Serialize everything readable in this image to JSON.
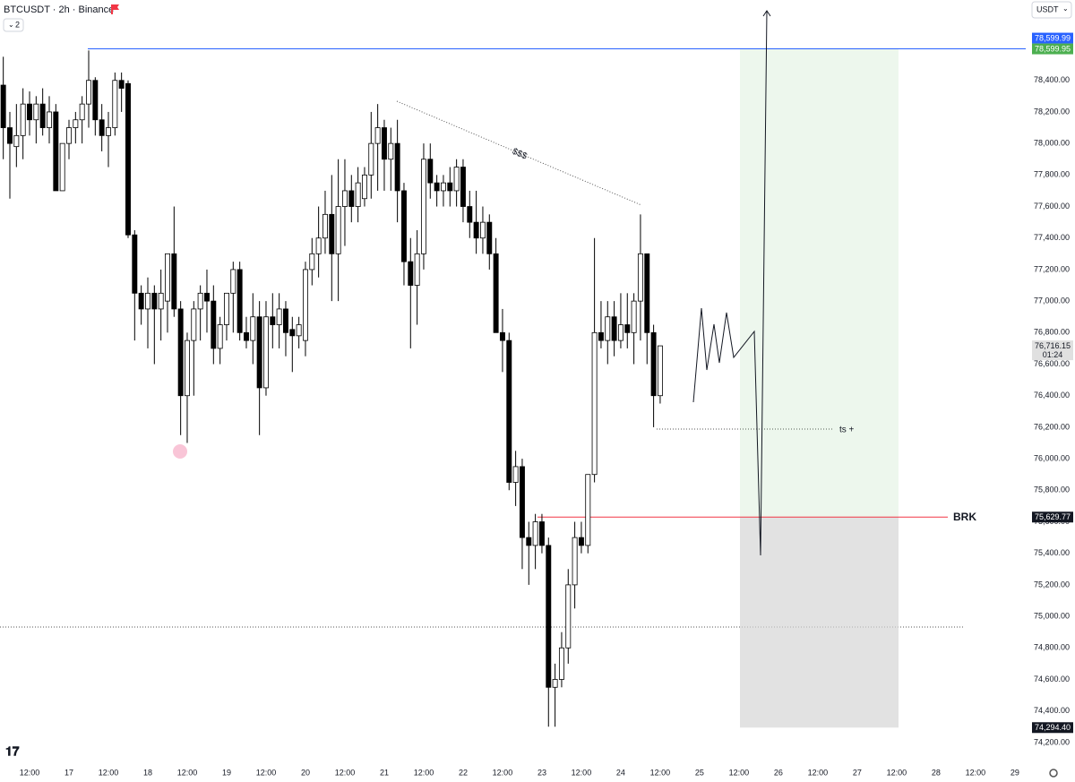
{
  "chart_data": {
    "type": "candlestick",
    "title": "BTCUSDT · 2h · Binance",
    "interval_badge": "2",
    "currency": "USDT",
    "x": [
      -20,
      -18,
      -16,
      -14,
      -12,
      -10,
      -8,
      -6,
      -4,
      -2,
      0,
      2,
      4,
      6,
      8,
      10,
      12,
      14,
      16,
      18,
      20,
      22,
      24,
      26,
      28,
      30,
      32,
      34,
      36,
      38,
      40,
      42,
      44,
      46,
      48,
      50,
      52,
      54,
      56,
      58,
      60,
      62,
      64,
      66,
      68,
      70,
      72,
      74,
      76,
      78,
      80,
      82,
      84,
      86,
      88,
      90,
      92,
      94,
      96,
      98,
      100,
      102,
      104,
      106,
      108,
      110,
      112,
      114,
      116,
      118,
      120,
      122,
      124,
      126,
      128,
      130,
      132,
      134,
      136,
      138,
      140,
      142,
      144,
      146,
      148,
      150,
      152,
      154,
      156,
      158,
      160,
      162,
      164,
      166,
      168,
      170,
      172,
      174,
      176,
      178,
      180
    ],
    "open": [
      78370,
      78100,
      77980,
      78050,
      78250,
      78150,
      78250,
      78100,
      78200,
      77700,
      78000,
      78100,
      78150,
      78250,
      78400,
      78150,
      78050,
      78100,
      78400,
      78380,
      77420,
      77050,
      76950,
      77050,
      76950,
      77000,
      77300,
      76950,
      76400,
      76750,
      76950,
      77050,
      77000,
      76700,
      76850,
      77050,
      77200,
      76800,
      76750,
      76900,
      76450,
      76900,
      76850,
      76950,
      76820,
      76780,
      76750,
      77200,
      77300,
      77400,
      77550,
      77300,
      77600,
      77700,
      77600,
      77650,
      77800,
      78000,
      78100,
      77900,
      78000,
      77700,
      77250,
      77100,
      77300,
      77900,
      77750,
      77700,
      77750,
      77700,
      77850,
      77600,
      77500,
      77400,
      77500,
      77300,
      76800,
      76750,
      75850,
      75950,
      75500,
      75450,
      75600,
      75450,
      74550,
      74600,
      74800,
      75200,
      75500,
      75450,
      75900,
      76800,
      76750,
      76900,
      76750,
      76850,
      76800,
      77000,
      77300,
      76800,
      76400
    ],
    "high": [
      78550,
      78200,
      78250,
      78350,
      78330,
      78300,
      78350,
      78300,
      78250,
      78000,
      78150,
      78200,
      78300,
      78590,
      78420,
      78250,
      78200,
      78450,
      78450,
      78400,
      77450,
      77100,
      77150,
      77100,
      77200,
      77300,
      77600,
      77000,
      76800,
      77000,
      77100,
      77200,
      77100,
      76900,
      77050,
      77250,
      77250,
      76900,
      77050,
      77000,
      77000,
      77050,
      77050,
      77000,
      76900,
      76900,
      77250,
      77400,
      77600,
      77700,
      77800,
      77900,
      77900,
      77800,
      77850,
      77850,
      78200,
      78250,
      78150,
      78100,
      78150,
      77750,
      77400,
      77450,
      78000,
      78000,
      77800,
      77800,
      77850,
      77900,
      77900,
      77700,
      77700,
      77600,
      77550,
      77400,
      76950,
      76800,
      76050,
      76000,
      75600,
      75650,
      75650,
      75500,
      74700,
      74900,
      75300,
      75600,
      75600,
      75900,
      77400,
      77000,
      77000,
      77000,
      77050,
      77050,
      77050,
      77550,
      77300,
      76850,
      76700
    ],
    "low": [
      77900,
      77650,
      77850,
      77900,
      78050,
      78000,
      78050,
      78000,
      77700,
      77700,
      77900,
      78000,
      78000,
      78100,
      78050,
      77950,
      77850,
      78050,
      78200,
      77400,
      76750,
      76850,
      76700,
      76600,
      76750,
      76800,
      76900,
      76150,
      76100,
      76400,
      76750,
      76800,
      76600,
      76600,
      76750,
      76800,
      76750,
      76700,
      76600,
      76150,
      76400,
      76700,
      76700,
      76650,
      76550,
      76700,
      76650,
      77100,
      77150,
      77300,
      77000,
      77000,
      77350,
      77500,
      77500,
      77600,
      77650,
      77700,
      77700,
      77700,
      77500,
      77100,
      76700,
      76850,
      77200,
      77650,
      77600,
      77600,
      77600,
      77600,
      77500,
      77400,
      77300,
      77300,
      77200,
      76800,
      76550,
      75800,
      75700,
      75300,
      75200,
      75300,
      75400,
      74300,
      74300,
      74550,
      74700,
      75050,
      75400,
      75400,
      75850,
      76700,
      76600,
      76650,
      76700,
      76700,
      76600,
      76750,
      76600,
      76200,
      76350
    ],
    "close": [
      78100,
      78000,
      78050,
      78250,
      78150,
      78250,
      78100,
      78200,
      77700,
      78000,
      78100,
      78150,
      78250,
      78400,
      78150,
      78050,
      78100,
      78400,
      78350,
      77420,
      77050,
      76950,
      77050,
      76950,
      77050,
      77300,
      76950,
      76400,
      76750,
      76950,
      77050,
      77000,
      76700,
      76850,
      77050,
      77200,
      76800,
      76750,
      76900,
      76450,
      76900,
      76850,
      76950,
      76800,
      76780,
      76850,
      77200,
      77300,
      77400,
      77550,
      77300,
      77600,
      77700,
      77600,
      77750,
      77800,
      78000,
      78100,
      77900,
      78000,
      77700,
      77250,
      77100,
      77300,
      77900,
      77750,
      77700,
      77750,
      77700,
      77850,
      77600,
      77500,
      77400,
      77500,
      77300,
      76800,
      76750,
      75850,
      75950,
      75500,
      75450,
      75600,
      75450,
      74550,
      74600,
      74800,
      75200,
      75500,
      75450,
      75900,
      76800,
      76750,
      76900,
      76750,
      76850,
      76800,
      77000,
      77300,
      76800,
      76400,
      76716.15
    ],
    "up_color": "#ffffff",
    "down_color": "#000000",
    "xlim": [
      -21,
      291.3
    ],
    "ylim": [
      74080,
      78910
    ],
    "xticks": [
      {
        "value": -12,
        "label": "12:00"
      },
      {
        "value": 0,
        "label": "17"
      },
      {
        "value": 12,
        "label": "12:00"
      },
      {
        "value": 24,
        "label": "18"
      },
      {
        "value": 36,
        "label": "12:00"
      },
      {
        "value": 48,
        "label": "19"
      },
      {
        "value": 60,
        "label": "12:00"
      },
      {
        "value": 72,
        "label": "20"
      },
      {
        "value": 84,
        "label": "12:00"
      },
      {
        "value": 96,
        "label": "21"
      },
      {
        "value": 108,
        "label": "12:00"
      },
      {
        "value": 120,
        "label": "22"
      },
      {
        "value": 132,
        "label": "12:00"
      },
      {
        "value": 144,
        "label": "23"
      },
      {
        "value": 156,
        "label": "12:00"
      },
      {
        "value": 168,
        "label": "24"
      },
      {
        "value": 180,
        "label": "12:00"
      },
      {
        "value": 192,
        "label": "25"
      },
      {
        "value": 204,
        "label": "12:00"
      },
      {
        "value": 216,
        "label": "26"
      },
      {
        "value": 228,
        "label": "12:00"
      },
      {
        "value": 240,
        "label": "27"
      },
      {
        "value": 252,
        "label": "12:00"
      },
      {
        "value": 264,
        "label": "28"
      },
      {
        "value": 276,
        "label": "12:00"
      },
      {
        "value": 288,
        "label": "29"
      }
    ],
    "yticks": [
      {
        "value": 74200,
        "label": "74,200.00"
      },
      {
        "value": 74400,
        "label": "74,400.00"
      },
      {
        "value": 74600,
        "label": "74,600.00"
      },
      {
        "value": 74800,
        "label": "74,800.00"
      },
      {
        "value": 75000,
        "label": "75,000.00"
      },
      {
        "value": 75200,
        "label": "75,200.00"
      },
      {
        "value": 75400,
        "label": "75,400.00"
      },
      {
        "value": 75600,
        "label": "75,600.00"
      },
      {
        "value": 75800,
        "label": "75,800.00"
      },
      {
        "value": 76000,
        "label": "76,000.00"
      },
      {
        "value": 76200,
        "label": "76,200.00"
      },
      {
        "value": 76400,
        "label": "76,400.00"
      },
      {
        "value": 76600,
        "label": "76,600.00"
      },
      {
        "value": 76800,
        "label": "76,800.00"
      },
      {
        "value": 77000,
        "label": "77,000.00"
      },
      {
        "value": 77200,
        "label": "77,200.00"
      },
      {
        "value": 77400,
        "label": "77,400.00"
      },
      {
        "value": 77600,
        "label": "77,600.00"
      },
      {
        "value": 77800,
        "label": "77,800.00"
      },
      {
        "value": 78000,
        "label": "78,000.00"
      },
      {
        "value": 78200,
        "label": "78,200.00"
      },
      {
        "value": 78400,
        "label": "78,400.00"
      }
    ],
    "price_labels": [
      {
        "value": 78599.99,
        "label": "78,599.99",
        "color": "#2962ff"
      },
      {
        "value": 78599.95,
        "label": "78,599.95",
        "color": "#4caf50"
      },
      {
        "value": 76716.15,
        "label": "76,716.15",
        "color": "#e0e0e0",
        "countdown": "01:24"
      },
      {
        "value": 75629.77,
        "label": "75,629.77",
        "color": "#131722"
      },
      {
        "value": 74294.4,
        "label": "74,294.40",
        "color": "#131722"
      }
    ],
    "annotations": {
      "liquidity": "$$$",
      "target": "ts +",
      "break": "BRK"
    }
  }
}
